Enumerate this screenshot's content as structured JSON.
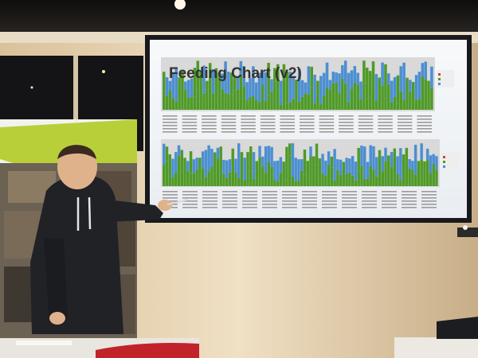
{
  "slide": {
    "title": "Feeding Chart (v2)",
    "bar_colors": {
      "breast": "#4c8fd1",
      "bottle": "#4f9a28",
      "solid": "#c94a2a",
      "background": "#d9d9d9"
    }
  },
  "colors": {
    "wall": "#f0e0c4",
    "ceiling": "#1c1a19",
    "screen_frame": "#17191d",
    "screen": "#f4f6f8",
    "hoodie": "#202226",
    "skin": "#e0b28c"
  },
  "icons": {
    "projector": "projector-icon"
  }
}
